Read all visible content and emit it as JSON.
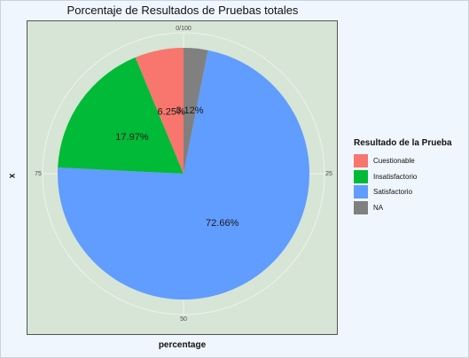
{
  "chart_data": {
    "type": "pie",
    "title": "Porcentaje de Resultados de Pruebas totales",
    "xlabel": "percentage",
    "ylabel": "x",
    "theta_ticks": [
      "0/100",
      "25",
      "50",
      "75"
    ],
    "legend_title": "Resultado de la Prueba",
    "legend_position": "right",
    "slices": [
      {
        "label": "NA",
        "value": 3.12,
        "color": "#808080",
        "data_label": "3.12%"
      },
      {
        "label": "Satisfactorio",
        "value": 72.66,
        "color": "#619cff",
        "data_label": "72.66%"
      },
      {
        "label": "Insatisfactorio",
        "value": 17.97,
        "color": "#00ba38",
        "data_label": "17.97%"
      },
      {
        "label": "Cuestionable",
        "value": 6.25,
        "color": "#f8766d",
        "data_label": "6.25%"
      }
    ],
    "legend_entries": [
      {
        "label": "Cuestionable",
        "color": "#f8766d"
      },
      {
        "label": "Insatisfactorio",
        "color": "#00ba38"
      },
      {
        "label": "Satisfactorio",
        "color": "#619cff"
      },
      {
        "label": "NA",
        "color": "#808080"
      }
    ],
    "grid": true
  }
}
